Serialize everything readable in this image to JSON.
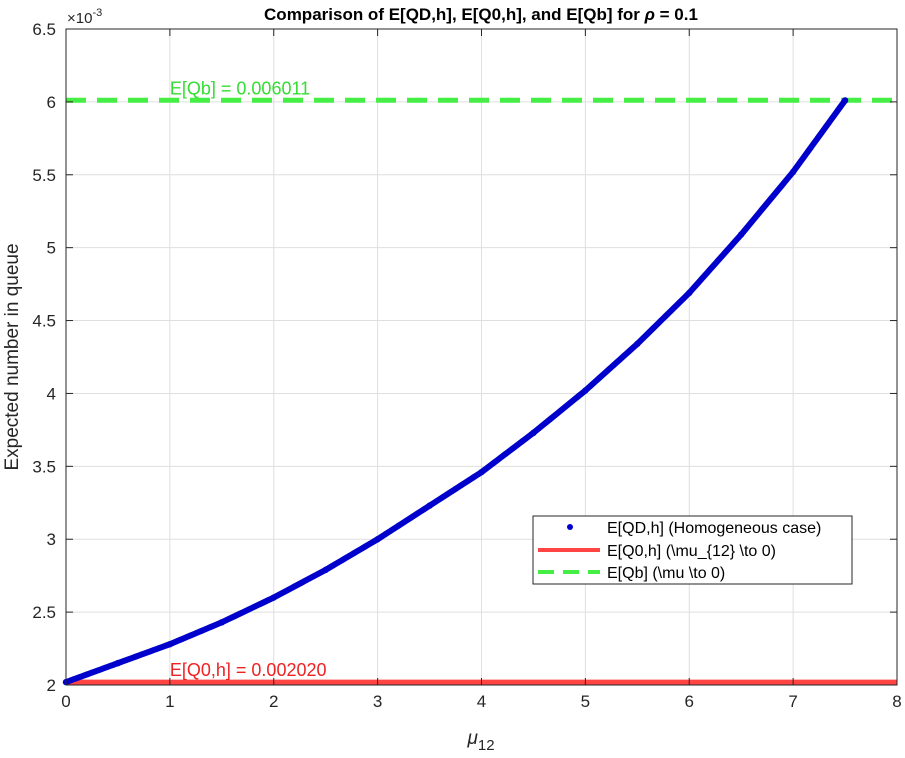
{
  "chart_data": {
    "type": "line",
    "title_prefix": "Comparison of E[QD,h], E[Q0,h], and E[Qb] for ",
    "title_symbol": "ρ",
    "title_suffix": " = 0.1",
    "xlabel_base": "μ",
    "xlabel_sub": "12",
    "ylabel": "Expected number in queue",
    "exponent_base": "×10",
    "exponent_power": "-3",
    "xlim": [
      0,
      8
    ],
    "ylim": [
      0.002,
      0.0065
    ],
    "x_ticks": [
      "0",
      "1",
      "2",
      "3",
      "4",
      "5",
      "6",
      "7",
      "8"
    ],
    "y_ticks": [
      "2",
      "2.5",
      "3",
      "3.5",
      "4",
      "4.5",
      "5",
      "5.5",
      "6",
      "6.5"
    ],
    "grid": true,
    "legend_position": "center-right",
    "series": [
      {
        "name": "E[QD,h] (Homogeneous case)",
        "style": "dots",
        "color": "#0000CC",
        "x": [
          0,
          0.5,
          1,
          1.5,
          2,
          2.5,
          3,
          3.5,
          4,
          4.5,
          5,
          5.5,
          6,
          6.5,
          7,
          7.5
        ],
        "y": [
          0.00202,
          0.00215,
          0.00228,
          0.00243,
          0.0026,
          0.00279,
          0.003,
          0.00323,
          0.00346,
          0.00373,
          0.00402,
          0.00434,
          0.00469,
          0.00509,
          0.00552,
          0.00601
        ]
      },
      {
        "name": "E[Q0,h] (\\mu_{12} \\to 0)",
        "style": "solid",
        "color": "#FF4444",
        "constant": 0.00202
      },
      {
        "name": "E[Qb] (\\mu \\to 0)",
        "style": "dashed",
        "color": "#44EE44",
        "constant": 0.006011
      }
    ],
    "annotations": [
      {
        "text": "E[Qb] = 0.006011",
        "x": 1,
        "y": 0.006011,
        "color": "#33DD33"
      },
      {
        "text": "E[Q0,h] = 0.002020",
        "x": 1,
        "y": 0.00202,
        "color": "#EE2222"
      }
    ]
  }
}
